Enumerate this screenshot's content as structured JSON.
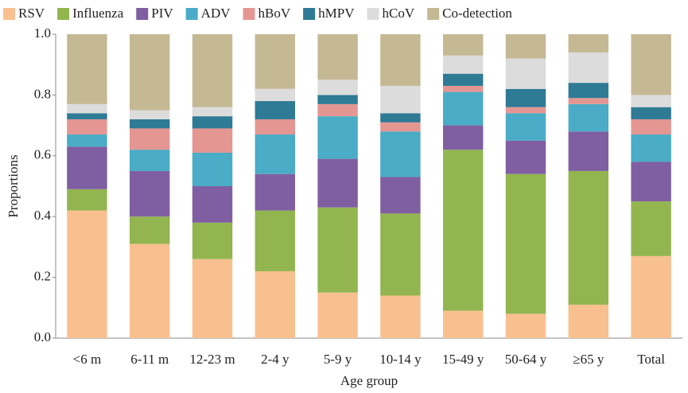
{
  "chart_data": {
    "type": "stacked_bar",
    "x_label": "Age group",
    "y_label": "Proportions",
    "categories": [
      "<6 m",
      "6-11 m",
      "12-23 m",
      "2-4 y",
      "5-9 y",
      "10-14 y",
      "15-49 y",
      "50-64 y",
      "≥65 y",
      "Total"
    ],
    "series": [
      {
        "name": "RSV",
        "color": "#f9c08f",
        "values": [
          0.42,
          0.31,
          0.26,
          0.22,
          0.15,
          0.14,
          0.09,
          0.08,
          0.11,
          0.27
        ]
      },
      {
        "name": "Influenza",
        "color": "#92b550",
        "values": [
          0.07,
          0.09,
          0.12,
          0.2,
          0.28,
          0.27,
          0.53,
          0.46,
          0.44,
          0.18
        ]
      },
      {
        "name": "PIV",
        "color": "#7f5fa1",
        "values": [
          0.14,
          0.15,
          0.12,
          0.12,
          0.16,
          0.12,
          0.08,
          0.11,
          0.13,
          0.13
        ]
      },
      {
        "name": "ADV",
        "color": "#4aacc6",
        "values": [
          0.04,
          0.07,
          0.11,
          0.13,
          0.14,
          0.15,
          0.11,
          0.09,
          0.09,
          0.09
        ]
      },
      {
        "name": "hBoV",
        "color": "#e49693",
        "values": [
          0.05,
          0.07,
          0.08,
          0.05,
          0.04,
          0.03,
          0.02,
          0.02,
          0.02,
          0.05
        ]
      },
      {
        "name": "hMPV",
        "color": "#2f7a95",
        "values": [
          0.02,
          0.03,
          0.04,
          0.06,
          0.03,
          0.03,
          0.04,
          0.06,
          0.05,
          0.04
        ]
      },
      {
        "name": "hCoV",
        "color": "#dcdcdc",
        "values": [
          0.03,
          0.03,
          0.03,
          0.04,
          0.05,
          0.09,
          0.06,
          0.1,
          0.1,
          0.04
        ]
      },
      {
        "name": "Co-detection",
        "color": "#c5b994",
        "values": [
          0.23,
          0.25,
          0.24,
          0.18,
          0.15,
          0.17,
          0.07,
          0.08,
          0.06,
          0.2
        ]
      }
    ],
    "ylim": [
      0,
      1
    ],
    "yticks": [
      {
        "value": 0,
        "label": "0.0"
      },
      0.2,
      0.4,
      0.6,
      0.8,
      {
        "value": 1,
        "label": "1.0"
      }
    ],
    "legend": "top"
  }
}
